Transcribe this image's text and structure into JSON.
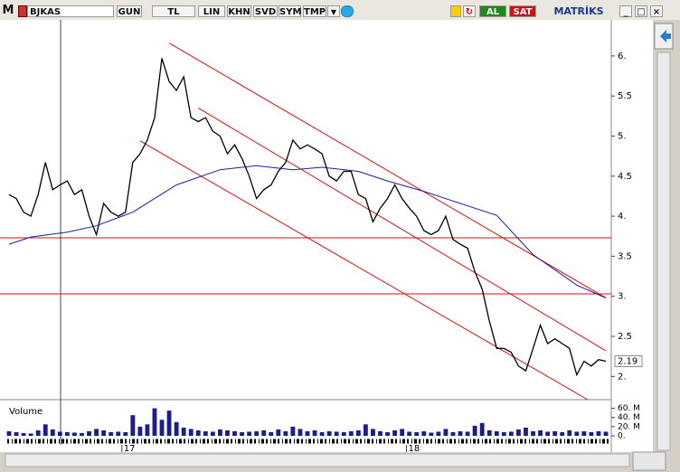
{
  "toolbar": {
    "logo": "M",
    "symbol": "BJKAS",
    "buttons": [
      "GUN",
      "TL",
      "LIN",
      "KHN",
      "SVD",
      "SYM",
      "TMP"
    ],
    "buy": "AL",
    "sell": "SAT",
    "brand": "MATRİKS"
  },
  "chart_data": {
    "type": "line",
    "xlim": [
      0,
      82
    ],
    "xticks": [
      {
        "value": 15.5,
        "label": "17"
      },
      {
        "value": 54.6,
        "label": "18"
      }
    ],
    "ylim": [
      1.71,
      6.45
    ],
    "yticks": [
      {
        "value": 6,
        "label": "6."
      },
      5.5,
      {
        "value": 5,
        "label": "5."
      },
      4.5,
      {
        "value": 4,
        "label": "4."
      },
      3.5,
      {
        "value": 3,
        "label": "3."
      },
      2.5,
      {
        "value": 2,
        "label": "2."
      }
    ],
    "last_price": 2.19,
    "series": [
      {
        "name": "BJKAS",
        "color": "#000000",
        "values": [
          4.27,
          4.22,
          4.05,
          4.0,
          4.27,
          4.67,
          4.33,
          4.39,
          4.44,
          4.27,
          4.33,
          4.0,
          3.77,
          4.16,
          4.05,
          4.0,
          4.05,
          4.67,
          4.78,
          4.95,
          5.23,
          5.97,
          5.68,
          5.57,
          5.74,
          5.23,
          5.18,
          5.23,
          5.06,
          5.0,
          4.78,
          4.89,
          4.72,
          4.5,
          4.22,
          4.33,
          4.39,
          4.56,
          4.67,
          4.95,
          4.84,
          4.89,
          4.84,
          4.78,
          4.5,
          4.44,
          4.56,
          4.56,
          4.27,
          4.22,
          3.93,
          4.1,
          4.22,
          4.39,
          4.22,
          4.1,
          4.0,
          3.82,
          3.77,
          3.82,
          4.0,
          3.71,
          3.65,
          3.6,
          3.31,
          3.09,
          2.69,
          2.35,
          2.35,
          2.3,
          2.13,
          2.07,
          2.35,
          2.64,
          2.41,
          2.47,
          2.41,
          2.35,
          2.02,
          2.19,
          2.13,
          2.21,
          2.19
        ]
      },
      {
        "color": "#1c1c9c",
        "x": [
          0,
          3,
          8,
          12,
          17,
          23,
          29,
          34,
          39,
          43,
          48,
          52,
          57,
          61,
          67,
          72,
          78,
          82
        ],
        "values": [
          3.65,
          3.74,
          3.8,
          3.88,
          4.05,
          4.39,
          4.58,
          4.63,
          4.58,
          4.61,
          4.56,
          4.44,
          4.31,
          4.19,
          4.01,
          3.52,
          3.14,
          2.98
        ]
      }
    ],
    "hlines": [
      3.73,
      3.03
    ],
    "hline_color": "#d01010",
    "channels": [
      {
        "x": [
          22,
          82
        ],
        "y": [
          6.16,
          2.98
        ]
      },
      {
        "x": [
          26,
          82
        ],
        "y": [
          5.35,
          2.32
        ]
      },
      {
        "x": [
          18,
          79.5
        ],
        "y": [
          4.94,
          1.71
        ]
      }
    ],
    "volume": {
      "label": "Volume",
      "color": "#1c1c8c",
      "ylim": [
        0,
        67
      ],
      "yticks": [
        {
          "value": 60,
          "label": "60. M"
        },
        {
          "value": 40,
          "label": "40. M"
        },
        {
          "value": 20,
          "label": "20. M"
        },
        {
          "value": 0,
          "label": "0."
        }
      ],
      "values": [
        10,
        8,
        6,
        5,
        12,
        25,
        14,
        9,
        8,
        7,
        6,
        10,
        15,
        12,
        8,
        9,
        8,
        45,
        20,
        25,
        60,
        35,
        55,
        30,
        18,
        15,
        12,
        10,
        9,
        14,
        12,
        10,
        8,
        9,
        10,
        12,
        8,
        14,
        10,
        20,
        15,
        10,
        12,
        8,
        10,
        9,
        8,
        10,
        12,
        25,
        15,
        10,
        8,
        12,
        15,
        9,
        8,
        10,
        7,
        9,
        15,
        8,
        10,
        9,
        22,
        28,
        12,
        10,
        8,
        9,
        14,
        18,
        10,
        12,
        9,
        10,
        8,
        12,
        9,
        10,
        8,
        10,
        9
      ]
    }
  }
}
